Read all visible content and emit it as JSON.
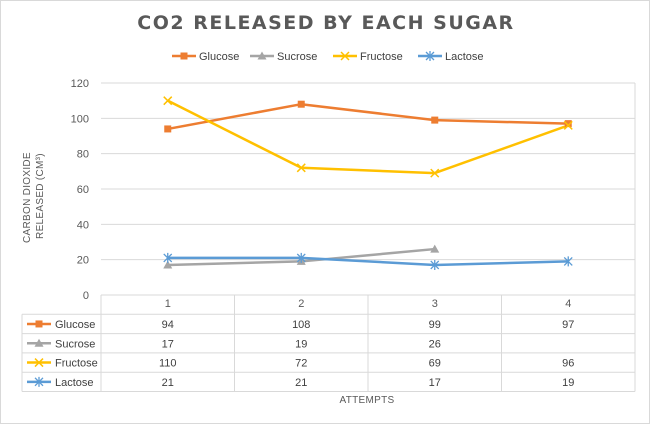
{
  "chart_data": {
    "type": "line",
    "title": "CO2 RELEASED BY EACH SUGAR",
    "xlabel": "ATTEMPTS",
    "ylabel_lines": [
      "CARBON DIOXIDE",
      "RELEASED (CM³)"
    ],
    "categories": [
      "1",
      "2",
      "3",
      "4"
    ],
    "yticks": [
      "0",
      "20",
      "40",
      "60",
      "80",
      "100",
      "120"
    ],
    "ylim": [
      0,
      120
    ],
    "grid": true,
    "legend_position": "top",
    "data_table": true,
    "series": [
      {
        "name": "Glucose",
        "color": "#ed7d31",
        "marker": "square",
        "values": [
          94,
          108,
          99,
          97
        ],
        "labels": [
          "94",
          "108",
          "99",
          "97"
        ]
      },
      {
        "name": "Sucrose",
        "color": "#a5a5a5",
        "marker": "triangle",
        "values": [
          17,
          19,
          26,
          null
        ],
        "labels": [
          "17",
          "19",
          "26",
          ""
        ]
      },
      {
        "name": "Fructose",
        "color": "#ffc000",
        "marker": "x",
        "values": [
          110,
          72,
          69,
          96
        ],
        "labels": [
          "110",
          "72",
          "69",
          "96"
        ]
      },
      {
        "name": "Lactose",
        "color": "#5b9bd5",
        "marker": "star",
        "values": [
          21,
          21,
          17,
          19
        ],
        "labels": [
          "21",
          "21",
          "17",
          "19"
        ]
      }
    ]
  }
}
